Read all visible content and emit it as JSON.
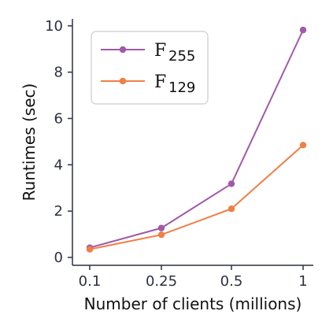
{
  "chart_data": {
    "type": "line",
    "x": [
      "0.1",
      "0.25",
      "0.5",
      "1"
    ],
    "series": [
      {
        "name": "F",
        "name_subscript": "255",
        "color": "#a05aa8",
        "values": [
          0.42,
          1.27,
          3.18,
          9.82
        ]
      },
      {
        "name": "F",
        "name_subscript": "129",
        "color": "#f07f45",
        "values": [
          0.35,
          0.98,
          2.1,
          4.85
        ]
      }
    ],
    "xlabel": "Number of clients (millions)",
    "ylabel": "Runtimes (sec)",
    "ylim": [
      0,
      10.3
    ],
    "yticks": [
      "0",
      "2",
      "4",
      "6",
      "8",
      "10"
    ],
    "legend_position": "top-left",
    "grid": false
  }
}
